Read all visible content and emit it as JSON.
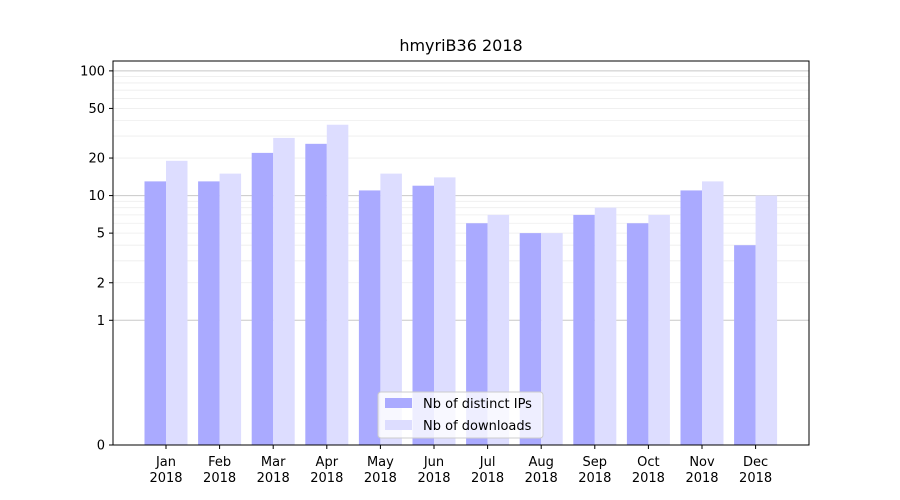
{
  "chart_data": {
    "type": "bar",
    "title": "hmyriB36 2018",
    "xlabel": "",
    "ylabel": "",
    "y_scale": "symlog",
    "ylim": [
      0,
      120
    ],
    "y_ticks": [
      0,
      1,
      2,
      5,
      10,
      20,
      50,
      100
    ],
    "y_tick_labels": [
      "0",
      "1",
      "2",
      "5",
      "10",
      "20",
      "50",
      "100"
    ],
    "categories": [
      [
        "Jan",
        "2018"
      ],
      [
        "Feb",
        "2018"
      ],
      [
        "Mar",
        "2018"
      ],
      [
        "Apr",
        "2018"
      ],
      [
        "May",
        "2018"
      ],
      [
        "Jun",
        "2018"
      ],
      [
        "Jul",
        "2018"
      ],
      [
        "Aug",
        "2018"
      ],
      [
        "Sep",
        "2018"
      ],
      [
        "Oct",
        "2018"
      ],
      [
        "Nov",
        "2018"
      ],
      [
        "Dec",
        "2018"
      ]
    ],
    "series": [
      {
        "name": "Nb of distinct IPs",
        "color": "#aaaaff",
        "values": [
          13,
          13,
          22,
          26,
          11,
          12,
          6,
          5,
          7,
          6,
          11,
          4
        ]
      },
      {
        "name": "Nb of downloads",
        "color": "#ddddff",
        "values": [
          19,
          15,
          29,
          37,
          15,
          14,
          7,
          5,
          8,
          7,
          13,
          10
        ]
      }
    ],
    "grid": true,
    "legend_position": "bottom-center"
  }
}
